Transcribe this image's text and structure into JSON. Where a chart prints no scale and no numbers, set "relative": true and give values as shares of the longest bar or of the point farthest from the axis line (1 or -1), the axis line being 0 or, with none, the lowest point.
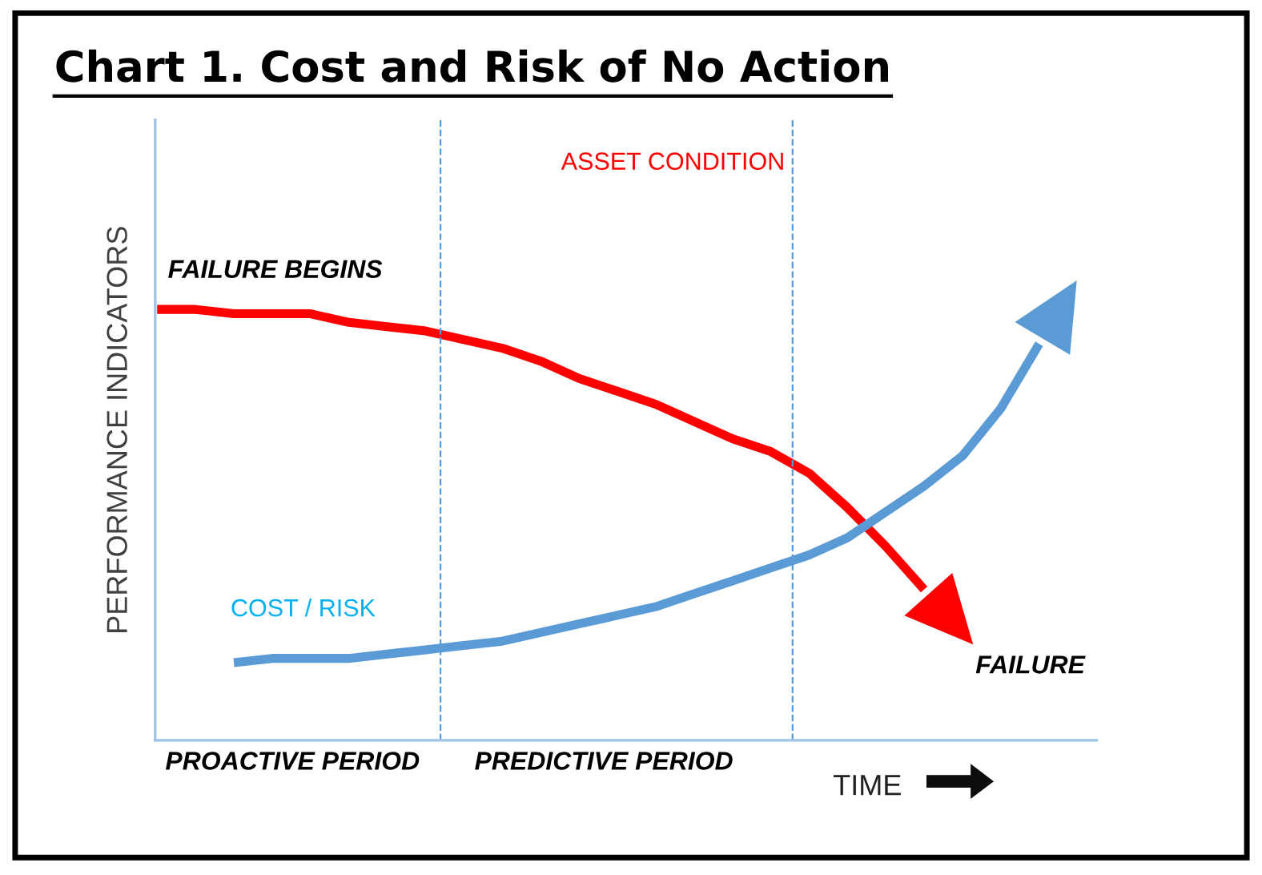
{
  "chart_data": {
    "type": "line",
    "relative": true,
    "title": "Chart 1. Cost and Risk of No Action",
    "xlabel": "TIME",
    "ylabel": "PERFORMANCE INDICATORS",
    "categories": [
      null,
      null,
      null,
      null,
      null,
      null,
      null,
      null,
      null,
      null,
      null,
      null,
      null,
      null,
      null,
      null,
      null,
      null,
      null,
      null,
      null,
      null,
      null,
      null,
      null
    ],
    "series": [
      {
        "name": "ASSET CONDITION",
        "color": "#ff0000",
        "values": [
          1.0,
          1.0,
          0.99,
          0.99,
          0.99,
          0.97,
          0.96,
          0.95,
          0.93,
          0.91,
          0.88,
          0.84,
          0.81,
          0.78,
          0.74,
          0.7,
          0.67,
          0.62,
          0.54,
          0.45,
          0.35,
          null,
          null,
          null,
          null
        ]
      },
      {
        "name": "COST / RISK",
        "color": "#5b9bd5",
        "values": [
          null,
          null,
          0.18,
          0.19,
          0.19,
          0.19,
          0.2,
          0.21,
          0.22,
          0.23,
          0.25,
          0.27,
          0.29,
          0.31,
          0.34,
          0.37,
          0.4,
          0.43,
          0.47,
          0.53,
          0.59,
          0.66,
          0.77,
          0.92,
          null
        ]
      }
    ],
    "annotations": [
      "FAILURE BEGINS",
      "FAILURE",
      "PROACTIVE PERIOD",
      "PREDICTIVE PERIOD"
    ],
    "marker": "none",
    "line_style": "solid",
    "legend": false,
    "tick_labels": false
  }
}
